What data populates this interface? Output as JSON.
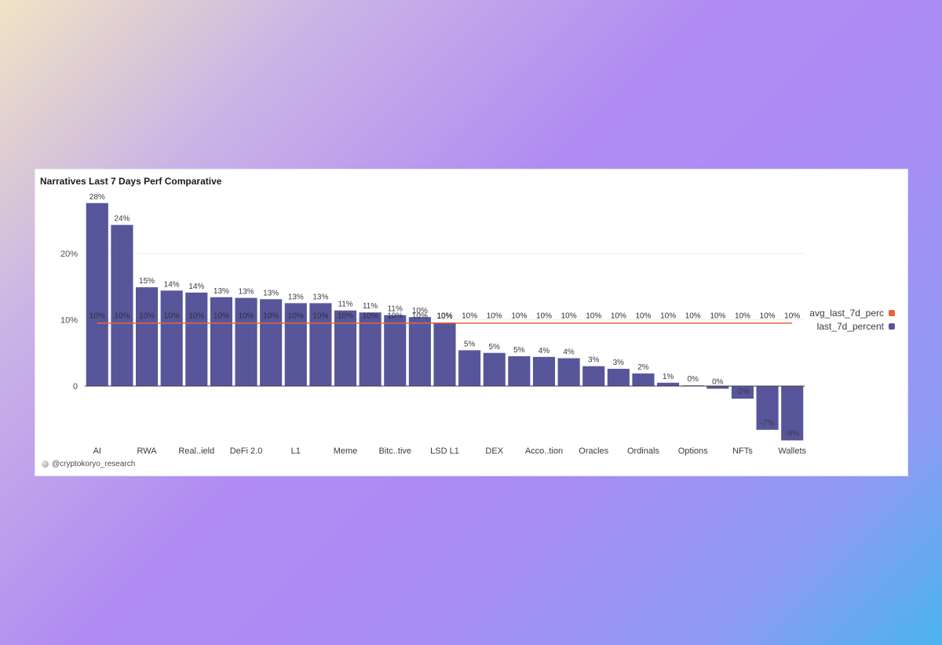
{
  "card": {
    "title": "Narratives Last 7 Days Perf Comparative",
    "credit": "@cryptokoryo_research",
    "credit_icon": "avatar-icon"
  },
  "legend": {
    "items": [
      {
        "label": "avg_last_7d_perc",
        "color": "#e8643c"
      },
      {
        "label": "last_7d_percent",
        "color": "#57569a"
      }
    ]
  },
  "chart_data": {
    "type": "bar",
    "ylim": [
      -9,
      29
    ],
    "yticks": [
      {
        "value": 0,
        "label": "0"
      },
      {
        "value": 10,
        "label": "10%"
      },
      {
        "value": 20,
        "label": "20%"
      }
    ],
    "xtick_labels": [
      "AI",
      "",
      "RWA",
      "",
      "Real..ield",
      "",
      "DeFi 2.0",
      "",
      "L1",
      "",
      "Meme",
      "",
      "Bitc..tive",
      "",
      "LSD L1",
      "",
      "DEX",
      "",
      "Acco..tion",
      "",
      "Oracles",
      "",
      "Ordinals",
      "",
      "Options",
      "",
      "NFTs",
      "",
      "Wallets"
    ],
    "series": [
      {
        "name": "last_7d_percent",
        "color": "#57569a",
        "values": [
          27.6,
          24.3,
          14.9,
          14.4,
          14.1,
          13.4,
          13.3,
          13.1,
          12.5,
          12.5,
          11.4,
          11.1,
          10.7,
          10.4,
          9.6,
          5.4,
          5.0,
          4.5,
          4.4,
          4.2,
          3.0,
          2.6,
          1.9,
          0.5,
          0.1,
          -0.4,
          -1.9,
          -6.6,
          -8.2
        ],
        "labels": [
          "28%",
          "24%",
          "15%",
          "14%",
          "14%",
          "13%",
          "13%",
          "13%",
          "13%",
          "13%",
          "11%",
          "11%",
          "11%",
          "10%",
          "10%",
          "5%",
          "5%",
          "5%",
          "4%",
          "4%",
          "3%",
          "3%",
          "2%",
          "1%",
          "0%",
          "0%",
          "-2%",
          "-7%",
          "-8%"
        ]
      },
      {
        "name": "avg_last_7d_perc",
        "type": "line",
        "color": "#e8643c",
        "values": [
          9.5,
          9.5,
          9.5,
          9.5,
          9.5,
          9.5,
          9.5,
          9.5,
          9.5,
          9.5,
          9.5,
          9.5,
          9.5,
          9.5,
          9.5,
          9.5,
          9.5,
          9.5,
          9.5,
          9.5,
          9.5,
          9.5,
          9.5,
          9.5,
          9.5,
          9.5,
          9.5,
          9.5,
          9.5
        ],
        "labels": [
          "10%",
          "10%",
          "10%",
          "10%",
          "10%",
          "10%",
          "10%",
          "10%",
          "10%",
          "10%",
          "10%",
          "10%",
          "10%",
          "10%",
          "10%",
          "10%",
          "10%",
          "10%",
          "10%",
          "10%",
          "10%",
          "10%",
          "10%",
          "10%",
          "10%",
          "10%",
          "10%",
          "10%",
          "10%"
        ]
      }
    ],
    "grid": true,
    "legend_position": "right"
  }
}
